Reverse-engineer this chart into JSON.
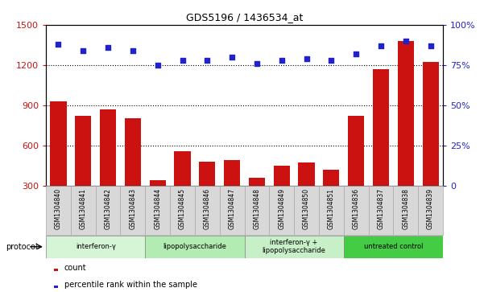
{
  "title": "GDS5196 / 1436534_at",
  "samples": [
    "GSM1304840",
    "GSM1304841",
    "GSM1304842",
    "GSM1304843",
    "GSM1304844",
    "GSM1304845",
    "GSM1304846",
    "GSM1304847",
    "GSM1304848",
    "GSM1304849",
    "GSM1304850",
    "GSM1304851",
    "GSM1304836",
    "GSM1304837",
    "GSM1304838",
    "GSM1304839"
  ],
  "counts": [
    930,
    820,
    870,
    800,
    340,
    555,
    480,
    490,
    355,
    445,
    470,
    420,
    820,
    1170,
    1380,
    1220
  ],
  "percentile_ranks": [
    88,
    84,
    86,
    84,
    75,
    78,
    78,
    80,
    76,
    78,
    79,
    78,
    82,
    87,
    90,
    87
  ],
  "groups": [
    {
      "label": "interferon-γ",
      "start": 0,
      "end": 4,
      "color": "#d6f5d6"
    },
    {
      "label": "lipopolysaccharide",
      "start": 4,
      "end": 8,
      "color": "#b3ecb3"
    },
    {
      "label": "interferon-γ +\nlipopolysaccharide",
      "start": 8,
      "end": 12,
      "color": "#c8f0c8"
    },
    {
      "label": "untreated control",
      "start": 12,
      "end": 16,
      "color": "#44cc44"
    }
  ],
  "left_ylim": [
    300,
    1500
  ],
  "right_ylim": [
    0,
    100
  ],
  "left_yticks": [
    300,
    600,
    900,
    1200,
    1500
  ],
  "right_yticks": [
    0,
    25,
    50,
    75,
    100
  ],
  "bar_color": "#cc1111",
  "dot_color": "#2222cc",
  "grid_values": [
    600,
    900,
    1200
  ],
  "bar_width": 0.65,
  "label_box_color": "#d8d8d8",
  "label_box_edge": "#aaaaaa"
}
